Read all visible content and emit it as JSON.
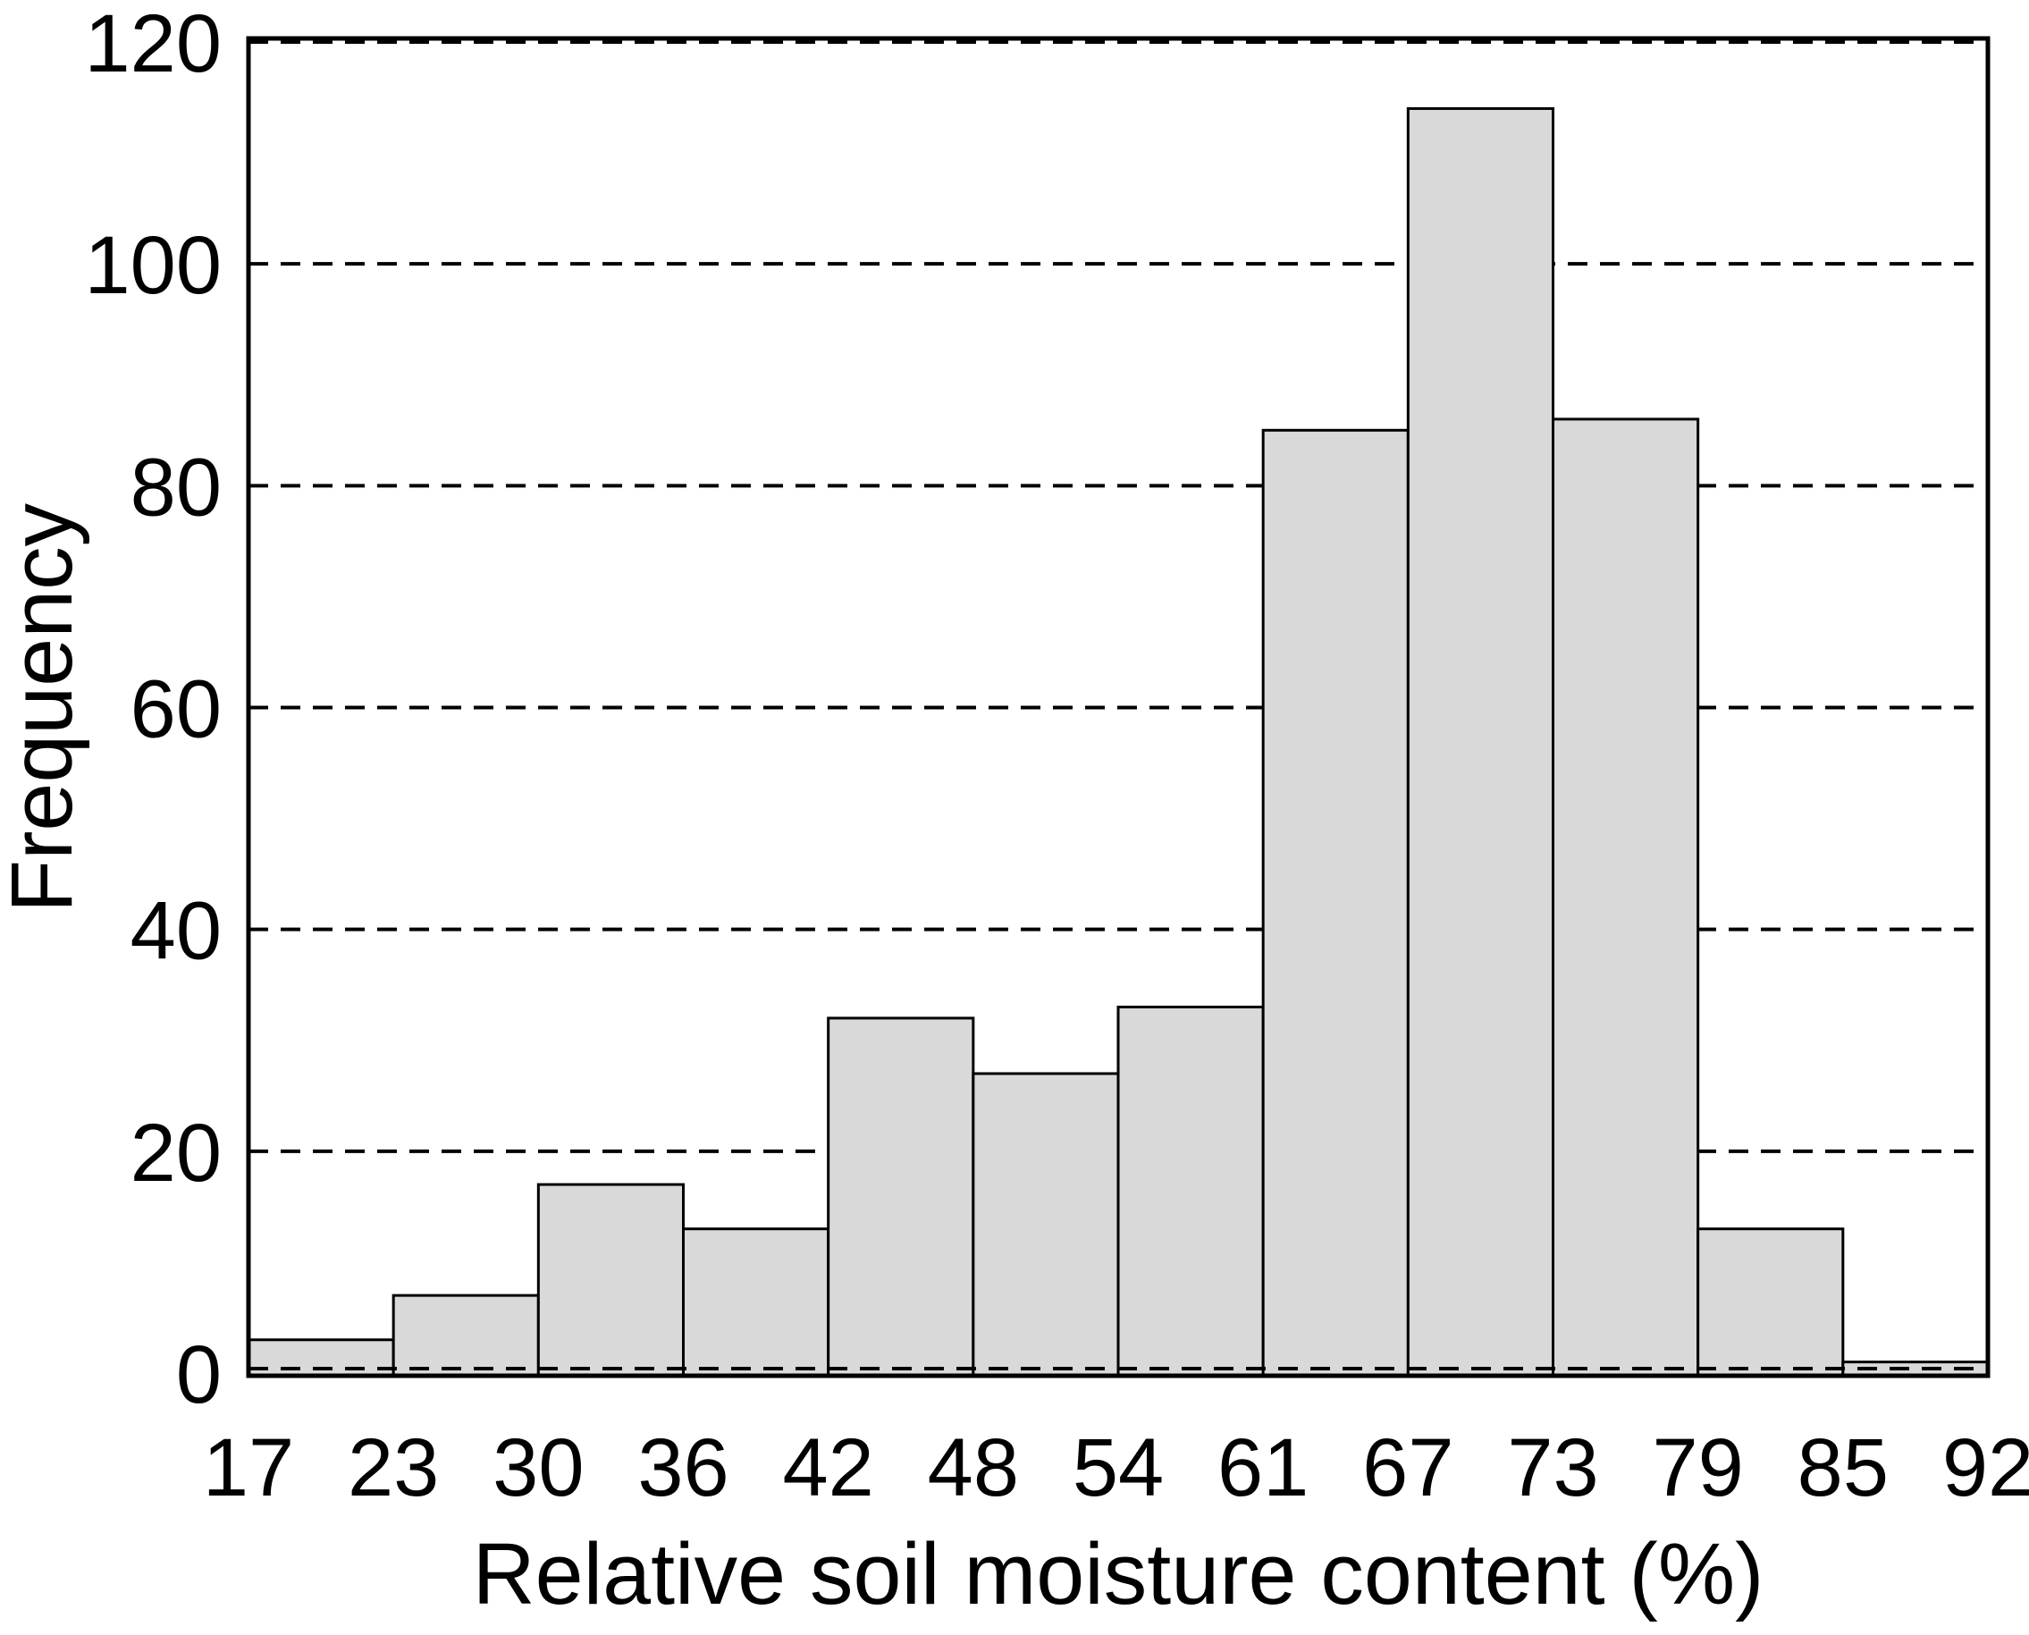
{
  "chart_data": {
    "type": "bar",
    "subtype": "histogram",
    "title": "",
    "xlabel": "Relative soil moisture content (%)",
    "ylabel": "Frequency",
    "bin_edges": [
      17,
      23,
      30,
      36,
      42,
      48,
      54,
      61,
      67,
      73,
      79,
      85,
      92
    ],
    "x_tick_labels": [
      "17",
      "23",
      "30",
      "36",
      "42",
      "48",
      "54",
      "61",
      "67",
      "73",
      "79",
      "85",
      "92"
    ],
    "values": [
      3,
      7,
      17,
      13,
      32,
      27,
      33,
      85,
      114,
      86,
      13,
      1
    ],
    "y_ticks": [
      0,
      20,
      40,
      60,
      80,
      100,
      120
    ],
    "ylim": [
      0,
      120
    ],
    "grid": "horizontal-dashed-at-each-y-tick",
    "legend": "none",
    "frame": "full-box",
    "colors": {
      "bar_fill": "#d9d9d9",
      "bar_stroke": "#000000",
      "axis": "#000000",
      "gridline": "#000000",
      "text": "#000000",
      "background": "#ffffff"
    }
  }
}
